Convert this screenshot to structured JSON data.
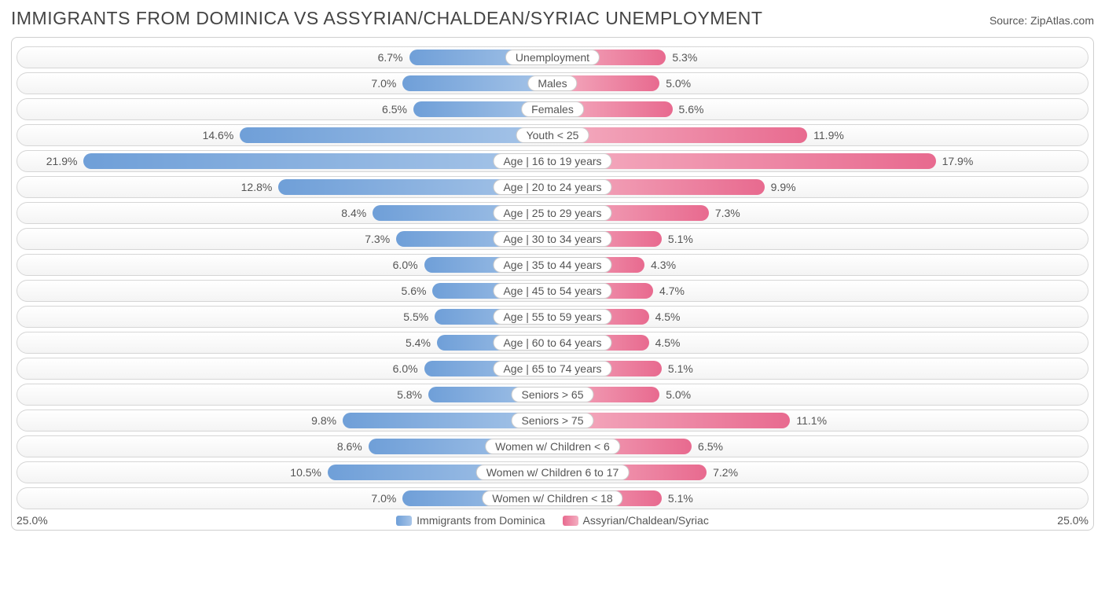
{
  "title": "IMMIGRANTS FROM DOMINICA VS ASSYRIAN/CHALDEAN/SYRIAC UNEMPLOYMENT",
  "source_label": "Source: ",
  "source_name": "ZipAtlas.com",
  "chart": {
    "type": "butterfly-bar",
    "axis_max": 25.0,
    "axis_max_label": "25.0%",
    "track_border_color": "#d6d6d6",
    "track_bg_top": "#ffffff",
    "track_bg_bottom": "#f4f4f4",
    "value_text_color": "#555555",
    "value_fontsize": 14,
    "category_fontsize": 14,
    "series": [
      {
        "key": "dominica",
        "label": "Immigrants from Dominica",
        "side": "left",
        "grad_from": "#6f9fd8",
        "grad_to": "#a7c5e8"
      },
      {
        "key": "assyrian",
        "label": "Assyrian/Chaldean/Syriac",
        "side": "right",
        "grad_from": "#e86a8f",
        "grad_to": "#f4aec1"
      }
    ],
    "rows": [
      {
        "label": "Unemployment",
        "dominica": 6.7,
        "assyrian": 5.3
      },
      {
        "label": "Males",
        "dominica": 7.0,
        "assyrian": 5.0
      },
      {
        "label": "Females",
        "dominica": 6.5,
        "assyrian": 5.6
      },
      {
        "label": "Youth < 25",
        "dominica": 14.6,
        "assyrian": 11.9
      },
      {
        "label": "Age | 16 to 19 years",
        "dominica": 21.9,
        "assyrian": 17.9
      },
      {
        "label": "Age | 20 to 24 years",
        "dominica": 12.8,
        "assyrian": 9.9
      },
      {
        "label": "Age | 25 to 29 years",
        "dominica": 8.4,
        "assyrian": 7.3
      },
      {
        "label": "Age | 30 to 34 years",
        "dominica": 7.3,
        "assyrian": 5.1
      },
      {
        "label": "Age | 35 to 44 years",
        "dominica": 6.0,
        "assyrian": 4.3
      },
      {
        "label": "Age | 45 to 54 years",
        "dominica": 5.6,
        "assyrian": 4.7
      },
      {
        "label": "Age | 55 to 59 years",
        "dominica": 5.5,
        "assyrian": 4.5
      },
      {
        "label": "Age | 60 to 64 years",
        "dominica": 5.4,
        "assyrian": 4.5
      },
      {
        "label": "Age | 65 to 74 years",
        "dominica": 6.0,
        "assyrian": 5.1
      },
      {
        "label": "Seniors > 65",
        "dominica": 5.8,
        "assyrian": 5.0
      },
      {
        "label": "Seniors > 75",
        "dominica": 9.8,
        "assyrian": 11.1
      },
      {
        "label": "Women w/ Children < 6",
        "dominica": 8.6,
        "assyrian": 6.5
      },
      {
        "label": "Women w/ Children 6 to 17",
        "dominica": 10.5,
        "assyrian": 7.2
      },
      {
        "label": "Women w/ Children < 18",
        "dominica": 7.0,
        "assyrian": 5.1
      }
    ]
  }
}
